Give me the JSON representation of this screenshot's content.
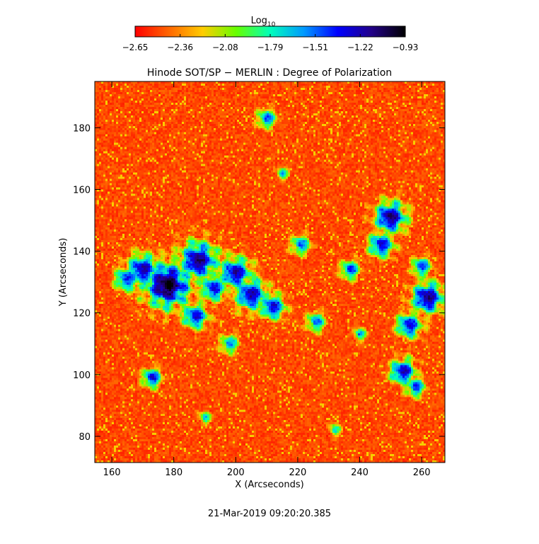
{
  "chart_data": {
    "type": "heatmap",
    "title": "Hinode SOT/SP − MERLIN : Degree of Polarization",
    "xlabel": "X (Arcseconds)",
    "ylabel": "Y (Arcseconds)",
    "xlim": [
      154.5,
      267.5
    ],
    "ylim": [
      71.5,
      195
    ],
    "xticks": [
      160,
      180,
      200,
      220,
      240,
      260
    ],
    "yticks": [
      80,
      100,
      120,
      140,
      160,
      180
    ],
    "timestamp": "21-Mar-2019 09:20:20.385",
    "colorbar": {
      "title_base": "Log",
      "title_sub": "10",
      "ticks": [
        "−2.65",
        "−2.36",
        "−2.08",
        "−1.79",
        "−1.51",
        "−1.22",
        "−0.93"
      ],
      "range": [
        -2.65,
        -0.93
      ],
      "colors": [
        "#ff0000",
        "#ff6600",
        "#ffcc00",
        "#66ff00",
        "#00ffbb",
        "#0099ff",
        "#0000ff",
        "#220088",
        "#000000"
      ]
    },
    "scale": "log10",
    "grid": false,
    "magnetic_concentrations": [
      {
        "x": 178,
        "y": 129,
        "radius": 7,
        "level": 1.0
      },
      {
        "x": 188,
        "y": 137,
        "radius": 6,
        "level": 0.9
      },
      {
        "x": 170,
        "y": 134,
        "radius": 5,
        "level": 0.85
      },
      {
        "x": 200,
        "y": 133,
        "radius": 5,
        "level": 0.85
      },
      {
        "x": 205,
        "y": 126,
        "radius": 5,
        "level": 0.85
      },
      {
        "x": 212,
        "y": 122,
        "radius": 4,
        "level": 0.8
      },
      {
        "x": 187,
        "y": 119,
        "radius": 4,
        "level": 0.8
      },
      {
        "x": 193,
        "y": 128,
        "radius": 4,
        "level": 0.8
      },
      {
        "x": 165,
        "y": 131,
        "radius": 4,
        "level": 0.75
      },
      {
        "x": 250,
        "y": 151,
        "radius": 5,
        "level": 0.9
      },
      {
        "x": 247,
        "y": 142,
        "radius": 4,
        "level": 0.8
      },
      {
        "x": 262,
        "y": 125,
        "radius": 5,
        "level": 0.9
      },
      {
        "x": 256,
        "y": 116,
        "radius": 4,
        "level": 0.8
      },
      {
        "x": 254,
        "y": 101,
        "radius": 4,
        "level": 0.85
      },
      {
        "x": 258,
        "y": 96,
        "radius": 3,
        "level": 0.75
      },
      {
        "x": 173,
        "y": 99,
        "radius": 3,
        "level": 0.8
      },
      {
        "x": 237,
        "y": 134,
        "radius": 3,
        "level": 0.75
      },
      {
        "x": 221,
        "y": 142,
        "radius": 3,
        "level": 0.7
      },
      {
        "x": 210,
        "y": 183,
        "radius": 3,
        "level": 0.7
      },
      {
        "x": 226,
        "y": 117,
        "radius": 3,
        "level": 0.7
      },
      {
        "x": 260,
        "y": 135,
        "radius": 3,
        "level": 0.75
      },
      {
        "x": 198,
        "y": 110,
        "radius": 3,
        "level": 0.65
      },
      {
        "x": 215,
        "y": 165,
        "radius": 2,
        "level": 0.6
      },
      {
        "x": 240,
        "y": 113,
        "radius": 2,
        "level": 0.65
      },
      {
        "x": 190,
        "y": 86,
        "radius": 2,
        "level": 0.6
      },
      {
        "x": 232,
        "y": 82,
        "radius": 2,
        "level": 0.55
      }
    ]
  }
}
